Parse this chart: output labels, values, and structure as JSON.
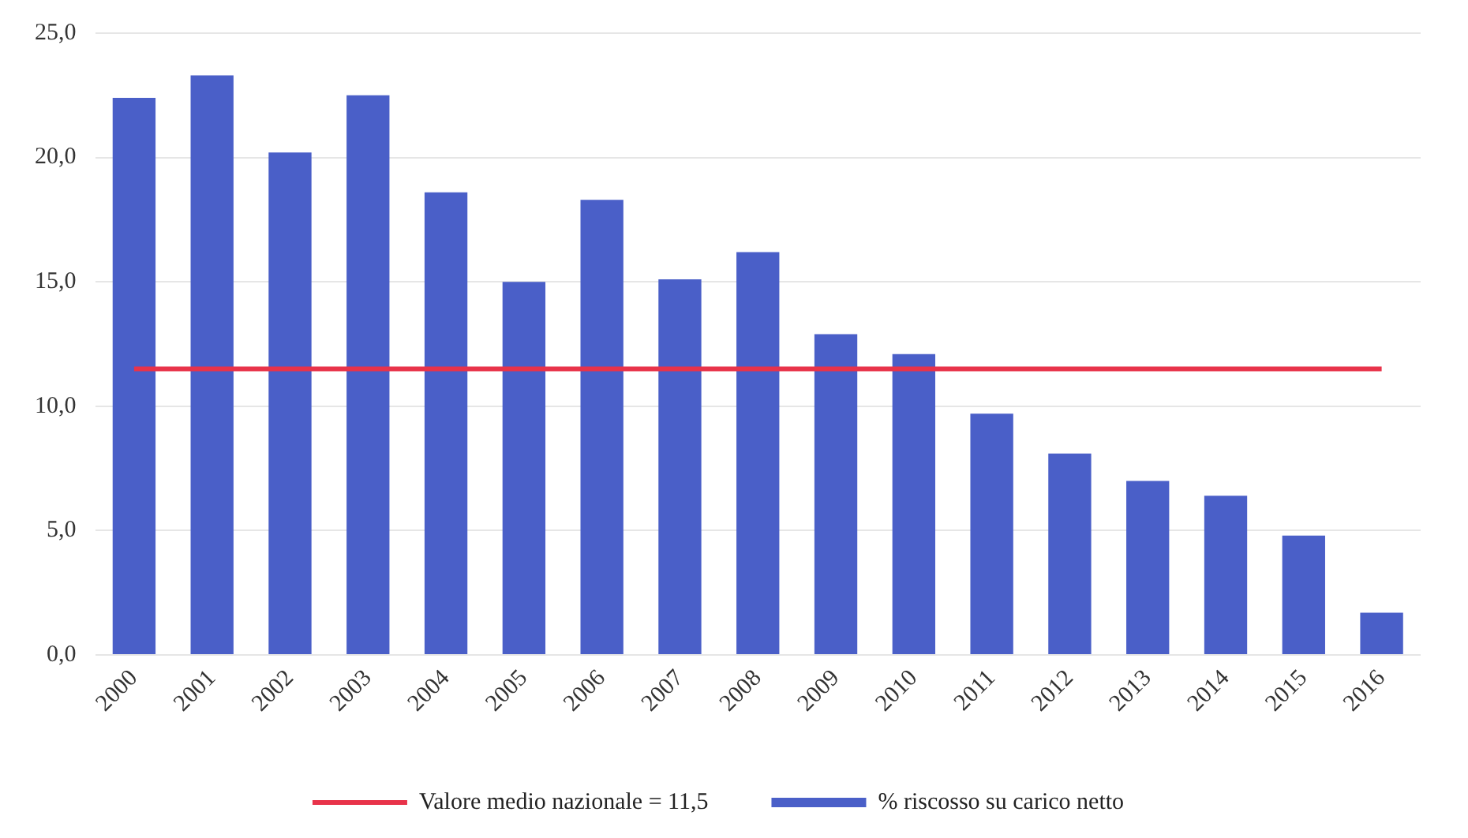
{
  "chart_data": {
    "type": "bar",
    "categories": [
      "2000",
      "2001",
      "2002",
      "2003",
      "2004",
      "2005",
      "2006",
      "2007",
      "2008",
      "2009",
      "2010",
      "2011",
      "2012",
      "2013",
      "2014",
      "2015",
      "2016"
    ],
    "series": [
      {
        "name": "% riscosso su carico netto",
        "color": "#4a5fc8",
        "values": [
          22.4,
          23.3,
          20.2,
          22.5,
          18.6,
          15.0,
          18.3,
          15.1,
          16.2,
          12.9,
          12.1,
          9.7,
          8.1,
          7.0,
          6.4,
          4.8,
          1.7
        ]
      },
      {
        "name": "Valore medio nazionale = 11,5",
        "type": "line",
        "color": "#e8334a",
        "values": [
          11.5,
          11.5,
          11.5,
          11.5,
          11.5,
          11.5,
          11.5,
          11.5,
          11.5,
          11.5,
          11.5,
          11.5,
          11.5,
          11.5,
          11.5,
          11.5,
          11.5
        ]
      }
    ],
    "ylim": [
      0,
      25
    ],
    "yticks": [
      {
        "value": 0,
        "label": "0,0"
      },
      {
        "value": 5,
        "label": "5,0"
      },
      {
        "value": 10,
        "label": "10,0"
      },
      {
        "value": 15,
        "label": "15,0"
      },
      {
        "value": 20,
        "label": "20,0"
      },
      {
        "value": 25,
        "label": "25,0"
      }
    ],
    "grid": "y",
    "legend": "bottom",
    "marker": "none"
  }
}
